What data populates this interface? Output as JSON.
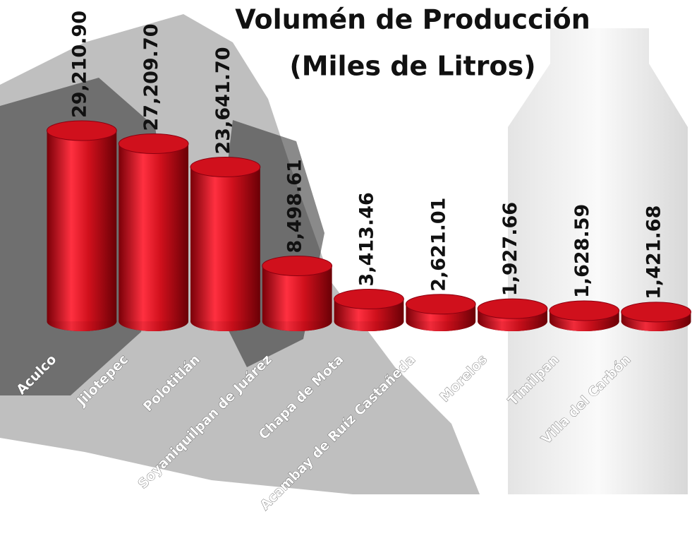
{
  "chart_data": {
    "type": "bar",
    "title": "Volumén de Producción",
    "subtitle": "(Miles de Litros)",
    "categories": [
      "Aculco",
      "Jilotepec",
      "Polotitlán",
      "Soyaniquilpan de Juárez",
      "Chapa de Mota",
      "Acambay de Ruíz Castañeda",
      "Morelos",
      "Timilpan",
      "Villa del Carbón"
    ],
    "values": [
      29210.9,
      27209.7,
      23641.7,
      8498.61,
      3413.46,
      2621.01,
      1927.66,
      1628.59,
      1421.68
    ],
    "value_labels": [
      "29,210.90",
      "27,209.70",
      "23,641.70",
      "8,498.61",
      "3,413.46",
      "2,621.01",
      "1,927.66",
      "1,628.59",
      "1,421.68"
    ],
    "color": "#d0101c"
  }
}
